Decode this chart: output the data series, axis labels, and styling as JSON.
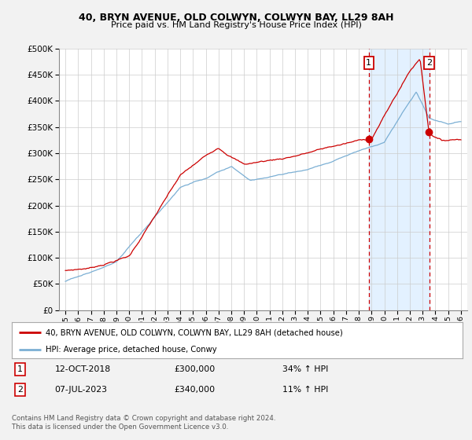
{
  "title1": "40, BRYN AVENUE, OLD COLWYN, COLWYN BAY, LL29 8AH",
  "title2": "Price paid vs. HM Land Registry's House Price Index (HPI)",
  "legend_line1": "40, BRYN AVENUE, OLD COLWYN, COLWYN BAY, LL29 8AH (detached house)",
  "legend_line2": "HPI: Average price, detached house, Conwy",
  "footnote1": "Contains HM Land Registry data © Crown copyright and database right 2024.",
  "footnote2": "This data is licensed under the Open Government Licence v3.0.",
  "marker1_label": "1",
  "marker1_date": "12-OCT-2018",
  "marker1_price": "£300,000",
  "marker1_hpi": "34% ↑ HPI",
  "marker2_label": "2",
  "marker2_date": "07-JUL-2023",
  "marker2_price": "£340,000",
  "marker2_hpi": "11% ↑ HPI",
  "ylim": [
    0,
    500000
  ],
  "xlim_start": 1994.5,
  "xlim_end": 2026.5,
  "marker1_x": 2018.78,
  "marker2_x": 2023.52,
  "red_color": "#cc0000",
  "blue_color": "#7bafd4",
  "shade_color": "#ddeeff",
  "background_color": "#f2f2f2",
  "plot_bg_color": "#ffffff",
  "grid_color": "#cccccc"
}
